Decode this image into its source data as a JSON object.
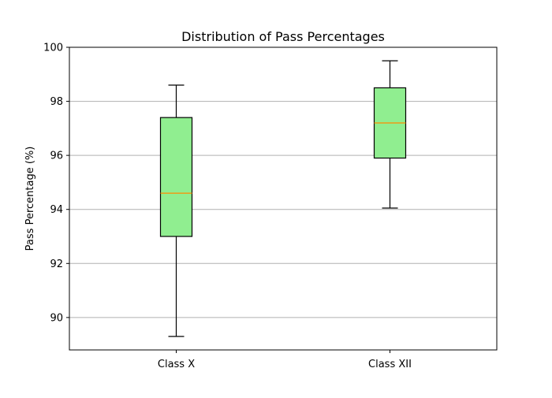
{
  "chart_data": {
    "type": "box",
    "title": "Distribution of Pass Percentages",
    "xlabel": "",
    "ylabel": "Pass Percentage (%)",
    "ylim": [
      88.8,
      100
    ],
    "yticks": [
      90,
      92,
      94,
      96,
      98,
      100
    ],
    "grid": "horizontal",
    "categories": [
      "Class X",
      "Class XII"
    ],
    "boxes": [
      {
        "category": "Class X",
        "whisker_low": 89.3,
        "q1": 93.0,
        "median": 94.6,
        "q3": 97.4,
        "whisker_high": 98.6
      },
      {
        "category": "Class XII",
        "whisker_low": 94.05,
        "q1": 95.9,
        "median": 97.2,
        "q3": 98.5,
        "whisker_high": 99.5
      }
    ],
    "colors": {
      "box_fill": "#90ee90",
      "median": "#ff8c00",
      "grid": "#b0b0b0",
      "edge": "#000000"
    }
  }
}
